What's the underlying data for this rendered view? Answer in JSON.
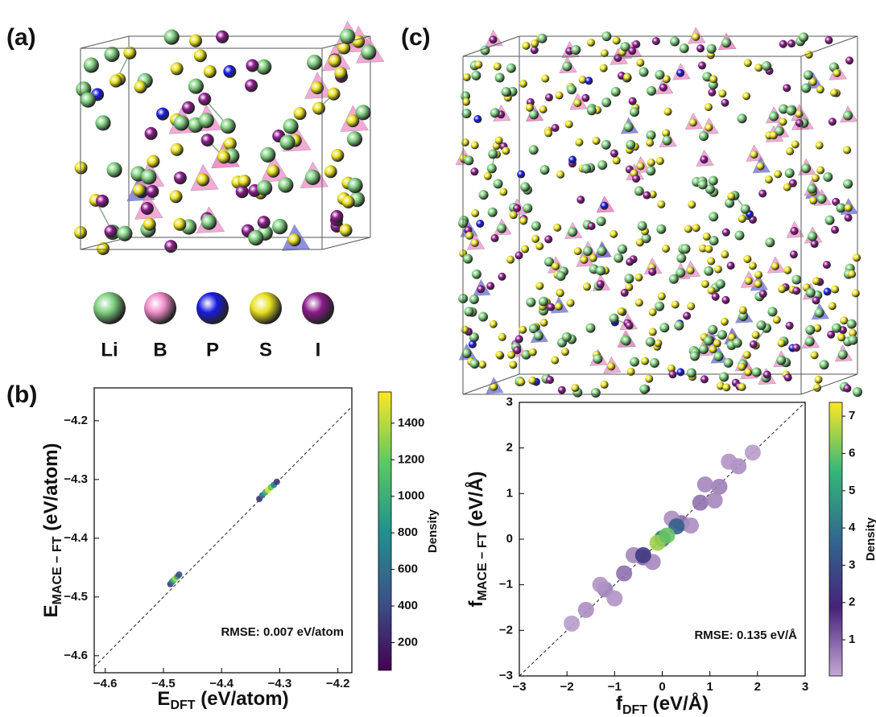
{
  "panels": {
    "a": "(a)",
    "b": "(b)",
    "c": "(c)"
  },
  "elements": [
    {
      "symbol": "Li",
      "color": "#7fcf7f"
    },
    {
      "symbol": "B",
      "color": "#f08cc8"
    },
    {
      "symbol": "P",
      "color": "#1a1ae0"
    },
    {
      "symbol": "S",
      "color": "#e8e020"
    },
    {
      "symbol": "I",
      "color": "#8a1a8a"
    }
  ],
  "chart_data": [
    {
      "type": "scatter",
      "xlabel": [
        "E",
        "DFT",
        " (eV/atom)"
      ],
      "ylabel": [
        "E",
        "MACE − FT",
        " (eV/atom)"
      ],
      "annotation": "RMSE: 0.007 eV/atom",
      "xlim": [
        -4.619,
        -4.176
      ],
      "ylim": [
        -4.629,
        -4.144
      ],
      "xticks": [
        {
          "value": -4.6,
          "label": "−4.6"
        },
        {
          "value": -4.5,
          "label": "−4.5"
        },
        {
          "value": -4.4,
          "label": "−4.4"
        },
        {
          "value": -4.3,
          "label": "−4.3"
        },
        {
          "value": -4.2,
          "label": "−4.2"
        }
      ],
      "yticks": [
        {
          "value": -4.6,
          "label": "−4.6"
        },
        {
          "value": -4.5,
          "label": "−4.5"
        },
        {
          "value": -4.4,
          "label": "−4.4"
        },
        {
          "value": -4.3,
          "label": "−4.3"
        },
        {
          "value": -4.2,
          "label": "−4.2"
        }
      ],
      "reference_line": true,
      "x": [
        -4.488,
        -4.485,
        -4.482,
        -4.479,
        -4.476,
        -4.473,
        -4.335,
        -4.33,
        -4.325,
        -4.32,
        -4.315,
        -4.31,
        -4.305
      ],
      "y": [
        -4.478,
        -4.474,
        -4.471,
        -4.468,
        -4.465,
        -4.462,
        -4.333,
        -4.327,
        -4.322,
        -4.318,
        -4.313,
        -4.309,
        -4.304
      ],
      "density": [
        300,
        700,
        1100,
        1400,
        900,
        400,
        250,
        600,
        1000,
        1500,
        1200,
        700,
        300
      ],
      "colorbar": {
        "label": "Density",
        "lim": [
          48,
          1571
        ],
        "ticks": [
          200,
          400,
          600,
          800,
          1000,
          1200,
          1400
        ]
      },
      "colormap": [
        "#440154",
        "#3b528b",
        "#21918c",
        "#5ec962",
        "#fde725"
      ]
    },
    {
      "type": "scatter",
      "xlabel": [
        "f",
        "DFT",
        " (eV/Å)"
      ],
      "ylabel": [
        "f",
        "MACE − FT",
        " (eV/Å)"
      ],
      "annotation": "RMSE: 0.135 eV/Å",
      "xlim": [
        -3,
        3
      ],
      "ylim": [
        -3,
        3
      ],
      "xticks": [
        {
          "value": -3,
          "label": "−3"
        },
        {
          "value": -2,
          "label": "−2"
        },
        {
          "value": -1,
          "label": "−1"
        },
        0,
        1,
        2,
        3
      ],
      "yticks": [
        {
          "value": -3,
          "label": "−3"
        },
        {
          "value": -2,
          "label": "−2"
        },
        {
          "value": -1,
          "label": "−1"
        },
        0,
        1,
        2,
        3
      ],
      "reference_line": true,
      "x": [
        -1.9,
        -1.6,
        -1.2,
        -0.8,
        -0.4,
        0,
        0.4,
        0.8,
        1.2,
        1.6,
        1.9,
        -1.3,
        -0.6,
        0.2,
        0.9,
        1.4,
        -1.0,
        -0.2,
        0.6,
        1.1,
        -0.4,
        0,
        0.3,
        -0.1,
        0.1
      ],
      "y": [
        -1.85,
        -1.55,
        -1.1,
        -0.75,
        -0.4,
        0,
        0.35,
        0.8,
        1.15,
        1.6,
        1.9,
        -1.0,
        -0.35,
        0.45,
        1.2,
        1.7,
        -1.3,
        -0.5,
        0.3,
        0.85,
        -0.35,
        0.02,
        0.28,
        -0.08,
        0.08
      ],
      "density": [
        0.2,
        0.4,
        0.6,
        0.8,
        0.9,
        1.0,
        0.9,
        0.8,
        0.6,
        0.4,
        0.2,
        0.3,
        0.5,
        0.4,
        0.5,
        0.3,
        0.3,
        0.5,
        0.4,
        0.5,
        2.5,
        4.5,
        3.5,
        6.5,
        6.0
      ],
      "colorbar": {
        "label": "Density",
        "lim": [
          0.03,
          7.37
        ],
        "ticks": [
          1,
          2,
          3,
          4,
          5,
          6,
          7
        ]
      },
      "colormap": [
        "#c4a8d4",
        "#46237a",
        "#31688e",
        "#35b779",
        "#fde725"
      ]
    }
  ]
}
